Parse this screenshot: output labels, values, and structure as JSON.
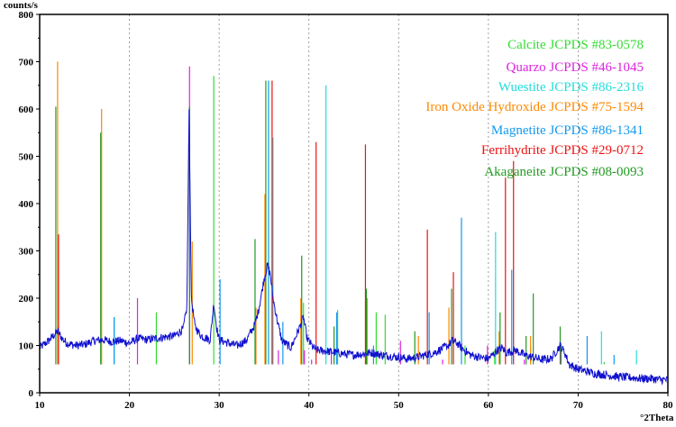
{
  "chart_data": {
    "type": "line",
    "title": "",
    "ylabel": "counts/s",
    "xlabel": "°2Theta",
    "xlim": [
      10,
      80
    ],
    "ylim": [
      0,
      800
    ],
    "xticks": [
      "10",
      "20",
      "30",
      "40",
      "50",
      "60",
      "70",
      "80"
    ],
    "yticks": [
      "0",
      "100",
      "200",
      "300",
      "400",
      "500",
      "600",
      "700",
      "800"
    ],
    "grid": "vertical-dashed",
    "legend_placement": "top-right",
    "pattern": {
      "name": "",
      "color": "#1010d0",
      "baseline": [
        [
          10,
          95
        ],
        [
          11,
          110
        ],
        [
          11.5,
          120
        ],
        [
          12,
          130
        ],
        [
          12.5,
          115
        ],
        [
          13,
          105
        ],
        [
          14,
          100
        ],
        [
          15,
          102
        ],
        [
          16,
          110
        ],
        [
          17,
          112
        ],
        [
          18,
          108
        ],
        [
          19,
          110
        ],
        [
          20,
          105
        ],
        [
          21,
          115
        ],
        [
          22,
          112
        ],
        [
          23,
          115
        ],
        [
          24,
          118
        ],
        [
          25,
          120
        ],
        [
          26,
          135
        ],
        [
          26.4,
          180
        ],
        [
          26.65,
          600
        ],
        [
          26.9,
          200
        ],
        [
          27.3,
          140
        ],
        [
          28,
          120
        ],
        [
          29,
          112
        ],
        [
          29.4,
          190
        ],
        [
          29.7,
          140
        ],
        [
          30,
          112
        ],
        [
          31,
          105
        ],
        [
          32,
          100
        ],
        [
          33,
          110
        ],
        [
          34,
          145
        ],
        [
          34.5,
          185
        ],
        [
          35,
          240
        ],
        [
          35.4,
          270
        ],
        [
          35.7,
          250
        ],
        [
          36,
          200
        ],
        [
          36.5,
          150
        ],
        [
          37,
          110
        ],
        [
          38,
          95
        ],
        [
          39,
          140
        ],
        [
          39.4,
          160
        ],
        [
          39.8,
          115
        ],
        [
          40.5,
          95
        ],
        [
          41,
          90
        ],
        [
          42,
          88
        ],
        [
          43,
          85
        ],
        [
          44,
          82
        ],
        [
          45,
          80
        ],
        [
          46,
          82
        ],
        [
          47,
          85
        ],
        [
          48,
          80
        ],
        [
          49,
          78
        ],
        [
          50,
          75
        ],
        [
          51,
          72
        ],
        [
          52,
          75
        ],
        [
          53,
          80
        ],
        [
          54,
          85
        ],
        [
          55,
          95
        ],
        [
          55.5,
          100
        ],
        [
          56,
          110
        ],
        [
          56.5,
          105
        ],
        [
          57,
          95
        ],
        [
          58,
          80
        ],
        [
          59,
          75
        ],
        [
          60,
          72
        ],
        [
          61,
          90
        ],
        [
          61.5,
          95
        ],
        [
          62,
          85
        ],
        [
          63,
          90
        ],
        [
          64,
          80
        ],
        [
          65,
          75
        ],
        [
          66,
          70
        ],
        [
          67,
          72
        ],
        [
          68,
          100
        ],
        [
          68.5,
          85
        ],
        [
          69,
          60
        ],
        [
          70,
          50
        ],
        [
          71,
          45
        ],
        [
          72,
          40
        ],
        [
          73,
          38
        ],
        [
          74,
          35
        ],
        [
          75,
          33
        ],
        [
          76,
          32
        ],
        [
          77,
          30
        ],
        [
          78,
          30
        ],
        [
          79,
          28
        ],
        [
          80,
          27
        ]
      ]
    },
    "series": [
      {
        "name": "Calcite JCPDS #83-0578",
        "color": "#33dd33",
        "peaks": [
          [
            23.0,
            170
          ],
          [
            29.4,
            670
          ],
          [
            36.0,
            150
          ],
          [
            39.4,
            190
          ],
          [
            43.2,
            175
          ],
          [
            47.5,
            170
          ],
          [
            48.5,
            165
          ],
          [
            57.4,
            100
          ],
          [
            60.7,
            90
          ],
          [
            64.7,
            100
          ],
          [
            72.9,
            65
          ]
        ]
      },
      {
        "name": "Quarzo JCPDS #46-1045",
        "color": "#dd22dd",
        "peaks": [
          [
            20.9,
            200
          ],
          [
            26.7,
            690
          ],
          [
            36.6,
            90
          ],
          [
            39.5,
            90
          ],
          [
            40.3,
            70
          ],
          [
            42.5,
            90
          ],
          [
            45.8,
            60
          ],
          [
            50.2,
            110
          ],
          [
            54.9,
            70
          ],
          [
            59.9,
            100
          ],
          [
            64.0,
            70
          ],
          [
            68.1,
            100
          ]
        ]
      },
      {
        "name": "Wuestite JCPDS #86-2316",
        "color": "#22dddd",
        "peaks": [
          [
            18.3,
            160
          ],
          [
            36.0,
            540
          ],
          [
            41.9,
            650
          ],
          [
            60.8,
            340
          ],
          [
            72.6,
            130
          ],
          [
            76.5,
            90
          ]
        ]
      },
      {
        "name": "Iron Oxide Hydroxide JCPDS #75-1594",
        "color": "#ff8800",
        "peaks": [
          [
            12.0,
            700
          ],
          [
            16.9,
            600
          ],
          [
            27.0,
            320
          ],
          [
            34.1,
            180
          ],
          [
            35.1,
            420
          ],
          [
            39.1,
            200
          ],
          [
            46.5,
            200
          ],
          [
            52.2,
            120
          ],
          [
            55.6,
            180
          ],
          [
            61.2,
            130
          ],
          [
            64.7,
            120
          ]
        ]
      },
      {
        "name": "Magnetite JCPDS #86-1341",
        "color": "#1199ee",
        "peaks": [
          [
            18.3,
            160
          ],
          [
            30.1,
            240
          ],
          [
            35.5,
            660
          ],
          [
            37.1,
            150
          ],
          [
            43.1,
            170
          ],
          [
            47.2,
            100
          ],
          [
            53.4,
            170
          ],
          [
            57.0,
            370
          ],
          [
            62.6,
            260
          ],
          [
            71.0,
            120
          ],
          [
            74.0,
            80
          ]
        ]
      },
      {
        "name": "Ferrihydrite JCPDS #29-0712",
        "color": "#ee1111",
        "peaks": [
          [
            12.1,
            335
          ],
          [
            35.9,
            660
          ],
          [
            40.8,
            530
          ],
          [
            46.3,
            525
          ],
          [
            53.2,
            345
          ],
          [
            56.1,
            255
          ],
          [
            61.9,
            455
          ],
          [
            62.8,
            490
          ]
        ]
      },
      {
        "name": "Akaganeite JCPDS #08-0093",
        "color": "#229922",
        "peaks": [
          [
            11.8,
            605
          ],
          [
            16.8,
            550
          ],
          [
            26.7,
            605
          ],
          [
            34.0,
            325
          ],
          [
            35.2,
            660
          ],
          [
            39.2,
            290
          ],
          [
            42.8,
            140
          ],
          [
            46.4,
            220
          ],
          [
            51.8,
            130
          ],
          [
            55.9,
            220
          ],
          [
            61.3,
            170
          ],
          [
            64.2,
            120
          ],
          [
            65.0,
            210
          ],
          [
            68.0,
            140
          ]
        ]
      }
    ]
  }
}
